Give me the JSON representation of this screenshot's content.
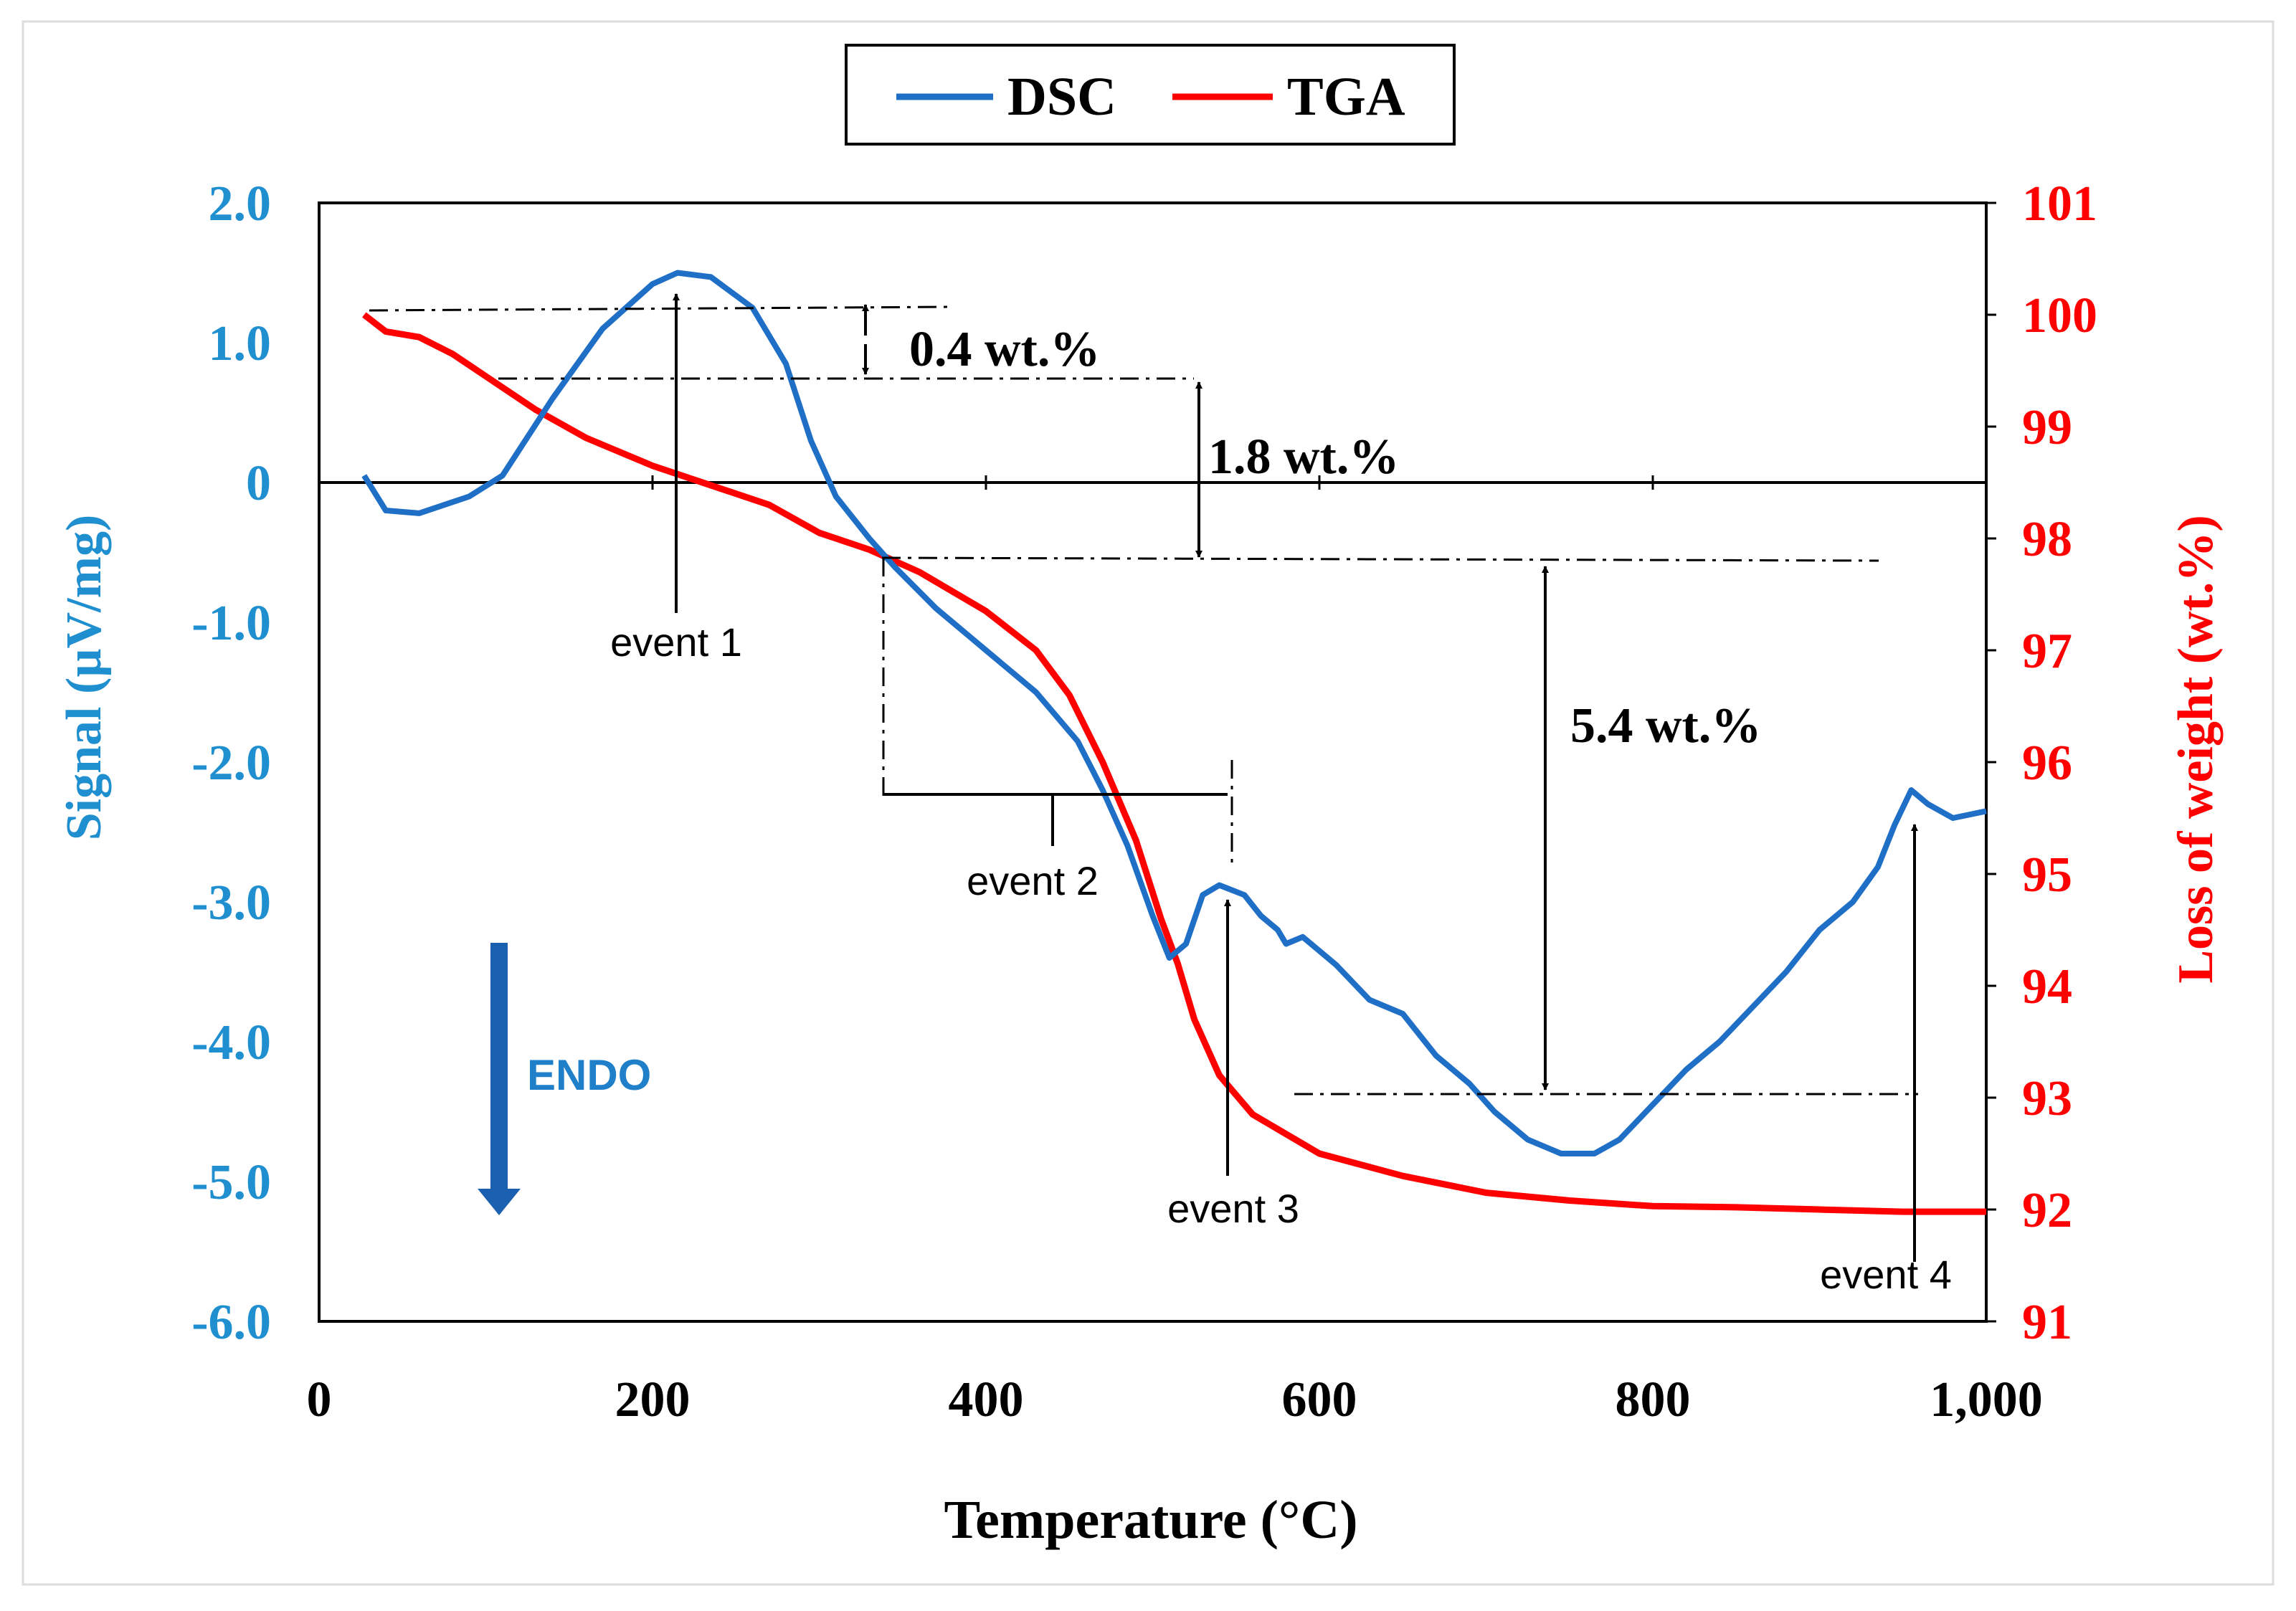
{
  "chart_data": {
    "type": "line",
    "legend": {
      "placement": "top-center",
      "entries": [
        {
          "name": "DSC",
          "color": "#1f6fc7"
        },
        {
          "name": "TGA",
          "color": "#ff0000"
        }
      ]
    },
    "xlabel": "Temperature  (°C)",
    "ylabel_left": "Signal (µV/mg)",
    "ylabel_right": "Loss of weight (wt.%)",
    "xlim": [
      0,
      1000
    ],
    "ylim_left": [
      -6.0,
      2.0
    ],
    "ylim_right": [
      91,
      101
    ],
    "x_ticks": [
      "0",
      "200",
      "400",
      "600",
      "800",
      "1,000"
    ],
    "y_ticks_left": [
      "2.0",
      "1.0",
      "0",
      "-1.0",
      "-2.0",
      "-3.0",
      "-4.0",
      "-5.0",
      "-6.0"
    ],
    "y_ticks_right": [
      "101",
      "100",
      "99",
      "98",
      "97",
      "96",
      "95",
      "94",
      "93",
      "92",
      "91"
    ],
    "series": [
      {
        "name": "DSC",
        "axis": "left",
        "color": "#1f6fc7",
        "points": [
          [
            27,
            0.05
          ],
          [
            40,
            -0.2
          ],
          [
            60,
            -0.22
          ],
          [
            90,
            -0.1
          ],
          [
            110,
            0.05
          ],
          [
            140,
            0.6
          ],
          [
            170,
            1.1
          ],
          [
            200,
            1.42
          ],
          [
            215,
            1.5
          ],
          [
            235,
            1.47
          ],
          [
            260,
            1.25
          ],
          [
            280,
            0.85
          ],
          [
            295,
            0.3
          ],
          [
            310,
            -0.1
          ],
          [
            330,
            -0.4
          ],
          [
            345,
            -0.6
          ],
          [
            370,
            -0.9
          ],
          [
            400,
            -1.2
          ],
          [
            430,
            -1.5
          ],
          [
            455,
            -1.85
          ],
          [
            470,
            -2.2
          ],
          [
            485,
            -2.6
          ],
          [
            500,
            -3.1
          ],
          [
            510,
            -3.4
          ],
          [
            520,
            -3.3
          ],
          [
            530,
            -2.95
          ],
          [
            540,
            -2.88
          ],
          [
            555,
            -2.95
          ],
          [
            565,
            -3.1
          ],
          [
            575,
            -3.2
          ],
          [
            580,
            -3.3
          ],
          [
            590,
            -3.25
          ],
          [
            610,
            -3.45
          ],
          [
            630,
            -3.7
          ],
          [
            650,
            -3.8
          ],
          [
            670,
            -4.1
          ],
          [
            690,
            -4.3
          ],
          [
            705,
            -4.5
          ],
          [
            725,
            -4.7
          ],
          [
            745,
            -4.8
          ],
          [
            765,
            -4.8
          ],
          [
            780,
            -4.7
          ],
          [
            800,
            -4.45
          ],
          [
            820,
            -4.2
          ],
          [
            840,
            -4.0
          ],
          [
            860,
            -3.75
          ],
          [
            880,
            -3.5
          ],
          [
            900,
            -3.2
          ],
          [
            920,
            -3.0
          ],
          [
            935,
            -2.75
          ],
          [
            945,
            -2.45
          ],
          [
            955,
            -2.2
          ],
          [
            965,
            -2.3
          ],
          [
            980,
            -2.4
          ],
          [
            1000,
            -2.35
          ]
        ]
      },
      {
        "name": "TGA",
        "axis": "right",
        "color": "#ff0000",
        "points": [
          [
            27,
            100.0
          ],
          [
            40,
            99.85
          ],
          [
            60,
            99.8
          ],
          [
            80,
            99.65
          ],
          [
            100,
            99.45
          ],
          [
            130,
            99.15
          ],
          [
            160,
            98.9
          ],
          [
            200,
            98.65
          ],
          [
            240,
            98.45
          ],
          [
            270,
            98.3
          ],
          [
            300,
            98.05
          ],
          [
            330,
            97.9
          ],
          [
            360,
            97.7
          ],
          [
            400,
            97.35
          ],
          [
            430,
            97.0
          ],
          [
            450,
            96.6
          ],
          [
            470,
            96.0
          ],
          [
            490,
            95.3
          ],
          [
            505,
            94.6
          ],
          [
            515,
            94.2
          ],
          [
            525,
            93.7
          ],
          [
            540,
            93.2
          ],
          [
            560,
            92.85
          ],
          [
            600,
            92.5
          ],
          [
            650,
            92.3
          ],
          [
            700,
            92.15
          ],
          [
            750,
            92.08
          ],
          [
            800,
            92.03
          ],
          [
            850,
            92.02
          ],
          [
            900,
            92.0
          ],
          [
            950,
            91.98
          ],
          [
            1000,
            91.98
          ]
        ]
      }
    ],
    "annotations": {
      "weight_losses": [
        "0.4 wt.%",
        "1.8 wt.%",
        "5.4 wt.%"
      ],
      "events": [
        "event 1",
        "event 2",
        "event 3",
        "event 4"
      ],
      "endo_label": "ENDO"
    }
  }
}
